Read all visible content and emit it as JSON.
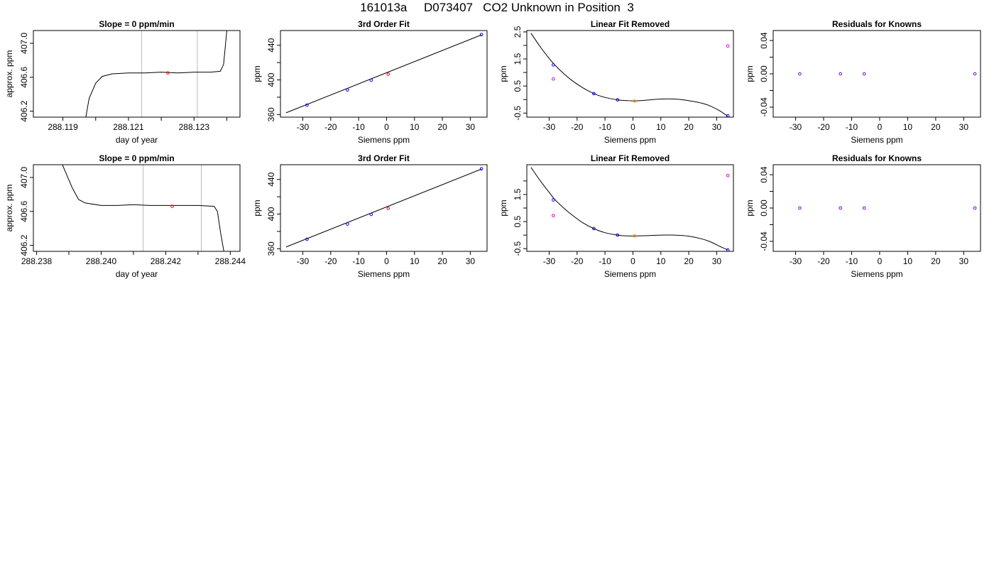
{
  "title": "161013a     D073407   CO2 Unknown in Position  3",
  "colors": {
    "black": "#000000",
    "blue": "#0000ff",
    "red": "#ff0000",
    "orange": "#ff8c00",
    "magenta": "#dd00dd",
    "purple": "#7700dd",
    "gray": "#bbbbbb"
  },
  "chart_data": [
    {
      "type": "line",
      "title": "Slope =  0  ppm/min",
      "xlabel": "day of year",
      "ylabel": "approx. ppm",
      "xlim": [
        288.1181,
        288.1244
      ],
      "ylim": [
        406.13,
        407.15
      ],
      "xticks": [
        288.119,
        288.121,
        288.123
      ],
      "xminorticks": [
        288.12,
        288.122,
        288.124
      ],
      "yticks": [
        406.2,
        406.6,
        407.0
      ],
      "yticklabels": [
        "406.2",
        "406.6",
        "407.0"
      ],
      "vlines": [
        288.1214,
        288.1231
      ],
      "series": [
        {
          "color": "black",
          "x": [
            288.1197,
            288.1198,
            288.12,
            288.1202,
            288.1205,
            288.121,
            288.1215,
            288.122,
            288.1225,
            288.123,
            288.1235,
            288.1238,
            288.1239,
            288.124
          ],
          "y": [
            406.13,
            406.35,
            406.53,
            406.61,
            406.64,
            406.65,
            406.65,
            406.66,
            406.65,
            406.66,
            406.66,
            406.67,
            406.75,
            407.15
          ]
        }
      ],
      "points": [
        {
          "x": 288.1222,
          "y": 406.65,
          "color": "red"
        }
      ]
    },
    {
      "type": "scatter",
      "title": "3rd Order Fit",
      "xlabel": "Siemens ppm",
      "ylabel": "ppm",
      "xlim": [
        -38,
        36
      ],
      "ylim": [
        357,
        457
      ],
      "xticks": [
        -30,
        -20,
        -10,
        0,
        10,
        20,
        30
      ],
      "yticks": [
        360,
        400,
        440
      ],
      "yminorticks": [
        380,
        420
      ],
      "line": {
        "x": [
          -36,
          34
        ],
        "y": [
          362,
          452
        ]
      },
      "points": [
        {
          "x": -28.5,
          "y": 370.9,
          "color": "blue"
        },
        {
          "x": -14,
          "y": 388.5,
          "color": "blue"
        },
        {
          "x": -5.5,
          "y": 399.6,
          "color": "blue"
        },
        {
          "x": 0.6,
          "y": 406.6,
          "color": "red"
        },
        {
          "x": 34,
          "y": 452.3,
          "color": "blue"
        }
      ]
    },
    {
      "type": "scatter",
      "title": "Linear Fit Removed",
      "xlabel": "Siemens ppm",
      "ylabel": "ppm",
      "xlim": [
        -38,
        36
      ],
      "ylim": [
        -0.65,
        2.55
      ],
      "xticks": [
        -30,
        -20,
        -10,
        0,
        10,
        20,
        30
      ],
      "yticks": [
        -0.5,
        0.5,
        1.5,
        2.5
      ],
      "yminorticks": [
        0,
        1,
        2
      ],
      "curve": {
        "x": [
          -36.5,
          -33,
          -30,
          -28,
          -25,
          -22,
          -18,
          -14,
          -10,
          -5.5,
          -2,
          1,
          5,
          10,
          15,
          20,
          25,
          28,
          31,
          34
        ],
        "y": [
          2.45,
          1.92,
          1.52,
          1.28,
          0.98,
          0.72,
          0.44,
          0.22,
          0.08,
          -0.01,
          -0.04,
          -0.05,
          -0.02,
          0.02,
          0.02,
          -0.04,
          -0.14,
          -0.25,
          -0.41,
          -0.62
        ]
      },
      "points": [
        {
          "x": -28.5,
          "y": 1.28,
          "color": "blue"
        },
        {
          "x": -28.5,
          "y": 0.76,
          "color": "magenta"
        },
        {
          "x": -14,
          "y": 0.22,
          "color": "blue"
        },
        {
          "x": -5.5,
          "y": -0.01,
          "color": "blue"
        },
        {
          "x": 0.6,
          "y": -0.06,
          "color": "orange"
        },
        {
          "x": 34,
          "y": 1.98,
          "color": "magenta"
        },
        {
          "x": 34,
          "y": -0.6,
          "color": "blue"
        }
      ]
    },
    {
      "type": "scatter",
      "title": "Residuals for Knowns",
      "xlabel": "Siemens ppm",
      "ylabel": "ppm",
      "xlim": [
        -38,
        36
      ],
      "ylim": [
        -0.052,
        0.052
      ],
      "xticks": [
        -30,
        -20,
        -10,
        0,
        10,
        20,
        30
      ],
      "yticks": [
        -0.04,
        0,
        0.04
      ],
      "yticklabels": [
        "-0.04",
        "0.00",
        "0.04"
      ],
      "yminorticks": [
        -0.02,
        0.02
      ],
      "points": [
        {
          "x": -28.5,
          "y": 0,
          "color": "purple"
        },
        {
          "x": -14,
          "y": 0,
          "color": "purple"
        },
        {
          "x": -5.5,
          "y": 0,
          "color": "purple"
        },
        {
          "x": 34,
          "y": 0,
          "color": "purple"
        }
      ]
    },
    {
      "type": "line",
      "title": "Slope =  0  ppm/min",
      "xlabel": "day of year",
      "ylabel": "approx. ppm",
      "xlim": [
        288.2379,
        288.2443
      ],
      "ylim": [
        406.13,
        407.15
      ],
      "xticks": [
        288.238,
        288.24,
        288.242,
        288.244
      ],
      "xminorticks": [
        288.239,
        288.241,
        288.243
      ],
      "yticks": [
        406.2,
        406.6,
        407.0
      ],
      "yticklabels": [
        "406.2",
        "406.6",
        "407.0"
      ],
      "vlines": [
        288.2413,
        288.2431
      ],
      "series": [
        {
          "color": "black",
          "x": [
            288.2388,
            288.2391,
            288.2393,
            288.2395,
            288.24,
            288.2405,
            288.241,
            288.2415,
            288.242,
            288.2425,
            288.243,
            288.2435,
            288.2436,
            288.2437,
            288.2438
          ],
          "y": [
            407.15,
            406.88,
            406.74,
            406.7,
            406.67,
            406.67,
            406.68,
            406.67,
            406.67,
            406.67,
            406.67,
            406.66,
            406.6,
            406.35,
            406.13
          ]
        }
      ],
      "points": [
        {
          "x": 288.2422,
          "y": 406.66,
          "color": "red"
        }
      ]
    },
    {
      "type": "scatter",
      "title": "3rd Order Fit",
      "xlabel": "Siemens ppm",
      "ylabel": "ppm",
      "xlim": [
        -38,
        36
      ],
      "ylim": [
        357,
        457
      ],
      "xticks": [
        -30,
        -20,
        -10,
        0,
        10,
        20,
        30
      ],
      "yticks": [
        360,
        400,
        440
      ],
      "yminorticks": [
        380,
        420
      ],
      "line": {
        "x": [
          -36,
          34
        ],
        "y": [
          362,
          452
        ]
      },
      "points": [
        {
          "x": -28.5,
          "y": 370.9,
          "color": "blue"
        },
        {
          "x": -14,
          "y": 388.5,
          "color": "blue"
        },
        {
          "x": -5.5,
          "y": 399.6,
          "color": "blue"
        },
        {
          "x": 0.6,
          "y": 406.6,
          "color": "red"
        },
        {
          "x": 34,
          "y": 452.3,
          "color": "blue"
        }
      ]
    },
    {
      "type": "scatter",
      "title": "Linear Fit Removed",
      "xlabel": "Siemens ppm",
      "ylabel": "ppm",
      "xlim": [
        -38,
        36
      ],
      "ylim": [
        -0.6,
        2.6
      ],
      "xticks": [
        -30,
        -20,
        -10,
        0,
        10,
        20,
        30
      ],
      "yticks": [
        -0.5,
        0.5,
        1.5
      ],
      "yminorticks": [
        0,
        1,
        2
      ],
      "curve": {
        "x": [
          -36.5,
          -33,
          -30,
          -28,
          -25,
          -22,
          -18,
          -14,
          -10,
          -5.5,
          -2,
          1,
          5,
          10,
          15,
          20,
          25,
          28,
          31,
          34
        ],
        "y": [
          2.5,
          1.98,
          1.58,
          1.32,
          1.02,
          0.76,
          0.46,
          0.24,
          0.09,
          0.0,
          -0.03,
          -0.03,
          -0.02,
          0.0,
          0.0,
          -0.04,
          -0.15,
          -0.26,
          -0.41,
          -0.55
        ]
      },
      "points": [
        {
          "x": -28.5,
          "y": 1.3,
          "color": "blue"
        },
        {
          "x": -28.5,
          "y": 0.72,
          "color": "magenta"
        },
        {
          "x": -14,
          "y": 0.24,
          "color": "blue"
        },
        {
          "x": -5.5,
          "y": 0.0,
          "color": "blue"
        },
        {
          "x": 0.6,
          "y": -0.03,
          "color": "orange"
        },
        {
          "x": 34,
          "y": 2.2,
          "color": "magenta"
        },
        {
          "x": 34,
          "y": -0.55,
          "color": "blue"
        }
      ]
    },
    {
      "type": "scatter",
      "title": "Residuals for Knowns",
      "xlabel": "Siemens ppm",
      "ylabel": "ppm",
      "xlim": [
        -38,
        36
      ],
      "ylim": [
        -0.052,
        0.052
      ],
      "xticks": [
        -30,
        -20,
        -10,
        0,
        10,
        20,
        30
      ],
      "yticks": [
        -0.04,
        0,
        0.04
      ],
      "yticklabels": [
        "-0.04",
        "0.00",
        "0.04"
      ],
      "yminorticks": [
        -0.02,
        0.02
      ],
      "points": [
        {
          "x": -28.5,
          "y": 0,
          "color": "purple"
        },
        {
          "x": -14,
          "y": 0,
          "color": "purple"
        },
        {
          "x": -5.5,
          "y": 0,
          "color": "purple"
        },
        {
          "x": 34,
          "y": 0,
          "color": "purple"
        }
      ]
    }
  ]
}
